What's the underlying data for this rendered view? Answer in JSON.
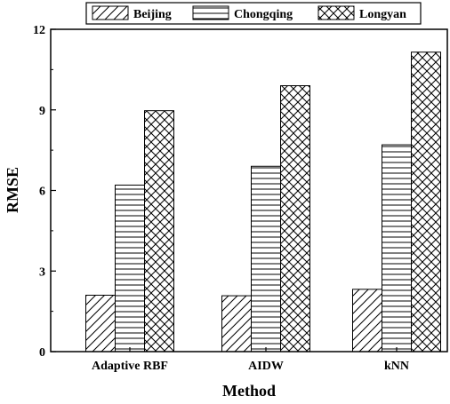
{
  "chart_data": {
    "type": "bar",
    "title": "",
    "xlabel": "Method",
    "ylabel": "RMSE",
    "categories": [
      "Adaptive RBF",
      "AIDW",
      "kNN"
    ],
    "series": [
      {
        "name": "Beijing",
        "pattern": "diagonal",
        "values": [
          2.1,
          2.08,
          2.32
        ]
      },
      {
        "name": "Chongqing",
        "pattern": "horizontal",
        "values": [
          6.2,
          6.9,
          7.7
        ]
      },
      {
        "name": "Longyan",
        "pattern": "crosshatch",
        "values": [
          8.97,
          9.9,
          11.15
        ]
      }
    ],
    "ylim": [
      0,
      12
    ],
    "yticks": [
      0,
      3,
      6,
      9,
      12
    ],
    "grid": false,
    "legend_position": "top-center",
    "colors": {
      "stroke": "#000000",
      "fill": "#ffffff"
    }
  }
}
